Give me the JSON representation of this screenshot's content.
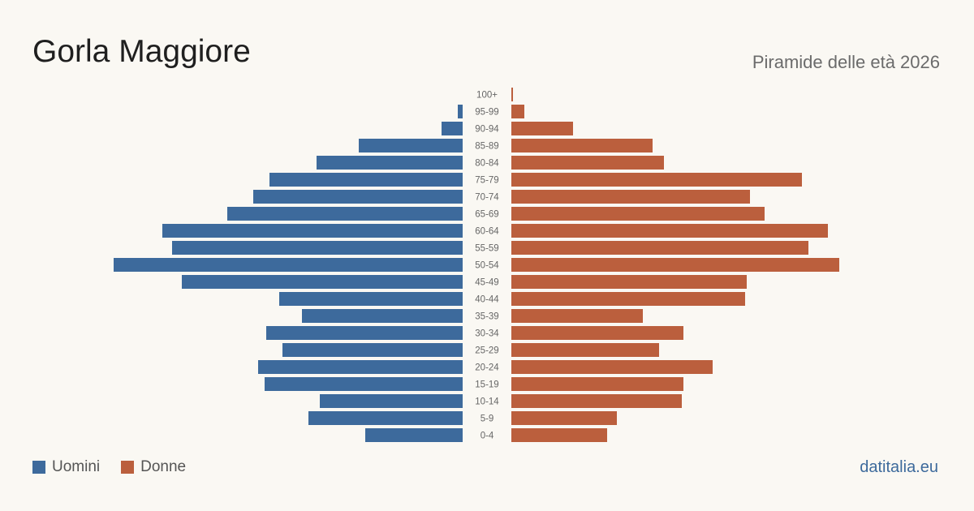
{
  "header": {
    "title": "Gorla Maggiore",
    "subtitle": "Piramide delle età 2026"
  },
  "footer": {
    "brand": "datitalia.eu"
  },
  "colors": {
    "men": "#3d6a9c",
    "women": "#bb5f3d",
    "label": "#666666",
    "background": "#faf8f3"
  },
  "chart_data": {
    "type": "bar",
    "orientation": "horizontal-pyramid",
    "title": "Piramide delle età 2026",
    "xlabel": "",
    "ylabel": "",
    "categories": [
      "100+",
      "95-99",
      "90-94",
      "85-89",
      "80-84",
      "75-79",
      "70-74",
      "65-69",
      "60-64",
      "55-59",
      "50-54",
      "45-49",
      "40-44",
      "35-39",
      "30-34",
      "25-29",
      "20-24",
      "15-19",
      "10-14",
      "5-9",
      "0-4"
    ],
    "series": [
      {
        "name": "Uomini",
        "side": "left",
        "values": [
          0,
          3,
          13,
          64,
          90,
          119,
          129,
          145,
          185,
          179,
          215,
          173,
          113,
          99,
          121,
          111,
          126,
          122,
          88,
          95,
          60
        ]
      },
      {
        "name": "Donne",
        "side": "right",
        "values": [
          1,
          8,
          38,
          87,
          94,
          179,
          147,
          156,
          195,
          183,
          202,
          145,
          144,
          81,
          106,
          91,
          124,
          106,
          105,
          65,
          59
        ]
      }
    ],
    "xlim": [
      0,
      215
    ],
    "grid": false,
    "legend": "bottom-left"
  }
}
